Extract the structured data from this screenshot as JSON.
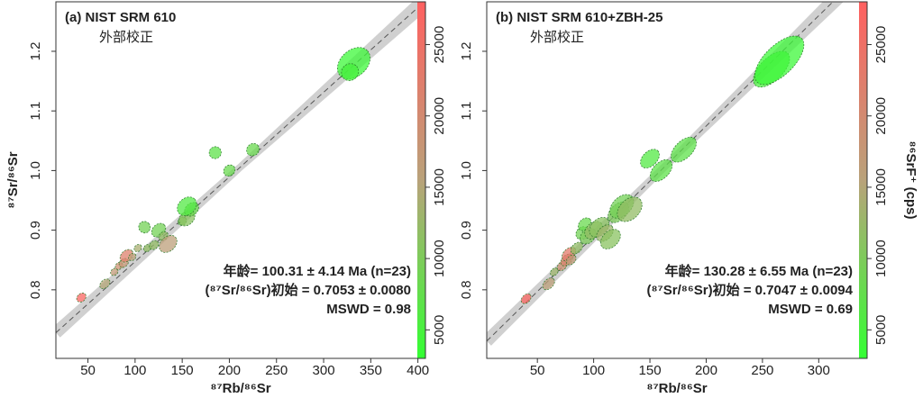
{
  "chart_data": [
    {
      "type": "scatter",
      "title": "(a) NIST SRM 610",
      "subtitle": "外部校正",
      "xlabel": "⁸⁷Rb/⁸⁶Sr",
      "ylabel": "⁸⁷Sr/⁸⁶Sr",
      "x": [
        43,
        68,
        78,
        83,
        88,
        91,
        97,
        103,
        110,
        113,
        120,
        125,
        130,
        135,
        150,
        155,
        160,
        185,
        200,
        225,
        155,
        332,
        328
      ],
      "values": [
        0.787,
        0.81,
        0.83,
        0.84,
        0.845,
        0.857,
        0.855,
        0.87,
        0.905,
        0.87,
        0.875,
        0.9,
        0.89,
        0.877,
        0.915,
        0.92,
        0.935,
        1.03,
        1.0,
        1.035,
        0.94,
        1.18,
        1.165
      ],
      "x_err": [
        4,
        5,
        3,
        3,
        4,
        6,
        3,
        3,
        2,
        3,
        4,
        6,
        4,
        8,
        3,
        7,
        6,
        3,
        4,
        4,
        8,
        15,
        5
      ],
      "y_err": [
        0.012,
        0.012,
        0.01,
        0.01,
        0.012,
        0.016,
        0.01,
        0.01,
        0.018,
        0.01,
        0.012,
        0.018,
        0.012,
        0.022,
        0.012,
        0.02,
        0.018,
        0.018,
        0.016,
        0.018,
        0.025,
        0.04,
        0.025
      ],
      "cps": [
        27000,
        15000,
        17000,
        19000,
        18000,
        22000,
        16000,
        14000,
        9000,
        12000,
        12000,
        9000,
        12000,
        16000,
        10000,
        11000,
        8000,
        7000,
        8000,
        8000,
        6000,
        4000,
        5000
      ],
      "xlim": [
        16,
        408
      ],
      "ylim": [
        0.685,
        1.283
      ],
      "xticks": [
        50,
        100,
        150,
        200,
        250,
        300,
        350,
        400
      ],
      "yticks": [
        0.8,
        0.9,
        {
          "value": 1,
          "label": "1.0"
        },
        1.1,
        1.2
      ],
      "line": {
        "intercept": 0.7053,
        "slope": 0.00142
      },
      "annotations": [
        "年龄= 100.31 ± 4.14 Ma (n=23)",
        "(⁸⁷Sr/⁸⁶Sr)初始 = 0.7053 ± 0.0080",
        "MSWD = 0.98"
      ],
      "colorbar": {
        "lim": [
          3000,
          28000
        ],
        "ticks": [
          5000,
          10000,
          15000,
          20000,
          25000
        ],
        "colors": [
          "#33ff33",
          "#b9a27a",
          "#ff6060"
        ]
      }
    },
    {
      "type": "scatter",
      "title": "(b) NIST SRM 610+ZBH-25",
      "subtitle": "外部校正",
      "xlabel": "⁸⁷Rb/⁸⁶Sr",
      "x": [
        40,
        60,
        65,
        72,
        76,
        78,
        80,
        85,
        90,
        92,
        95,
        100,
        105,
        110,
        115,
        122,
        125,
        132,
        150,
        160,
        180,
        258,
        265
      ],
      "values": [
        0.785,
        0.81,
        0.83,
        0.84,
        0.85,
        0.86,
        0.85,
        0.87,
        0.895,
        0.91,
        0.89,
        0.9,
        0.905,
        0.895,
        0.885,
        0.93,
        0.94,
        0.935,
        1.02,
        1.0,
        1.035,
        1.17,
        1.185
      ],
      "x_err": [
        4,
        5,
        3,
        4,
        5,
        6,
        4,
        5,
        4,
        5,
        6,
        7,
        8,
        7,
        8,
        9,
        10,
        10,
        8,
        10,
        12,
        18,
        25
      ],
      "y_err": [
        0.012,
        0.014,
        0.01,
        0.012,
        0.014,
        0.016,
        0.012,
        0.014,
        0.018,
        0.016,
        0.02,
        0.022,
        0.024,
        0.02,
        0.024,
        0.024,
        0.028,
        0.03,
        0.022,
        0.024,
        0.026,
        0.035,
        0.045
      ],
      "cps": [
        27000,
        16000,
        13000,
        19000,
        21000,
        23000,
        17000,
        12000,
        9000,
        8000,
        10000,
        12000,
        11000,
        13000,
        11000,
        10000,
        9000,
        12000,
        6000,
        7000,
        7000,
        5000,
        4000
      ],
      "xlim": [
        5,
        343
      ],
      "ylim": [
        0.685,
        1.283
      ],
      "xticks": [
        50,
        100,
        150,
        200,
        250,
        300
      ],
      "yticks": [
        0.8,
        0.9,
        {
          "value": 1,
          "label": "1.0"
        },
        1.1,
        1.2
      ],
      "line": {
        "intercept": 0.7047,
        "slope": 0.00185
      },
      "annotations": [
        "年龄= 130.28 ± 6.55 Ma (n=23)",
        "(⁸⁷Sr/⁸⁶Sr)初始 = 0.7047 ± 0.0094",
        "MSWD = 0.69"
      ],
      "colorbar": {
        "label": "⁸⁶SrF⁺ (cps)",
        "lim": [
          3000,
          28000
        ],
        "ticks": [
          5000,
          10000,
          15000,
          20000,
          25000
        ],
        "colors": [
          "#33ff33",
          "#b9a27a",
          "#ff6060"
        ]
      }
    }
  ]
}
